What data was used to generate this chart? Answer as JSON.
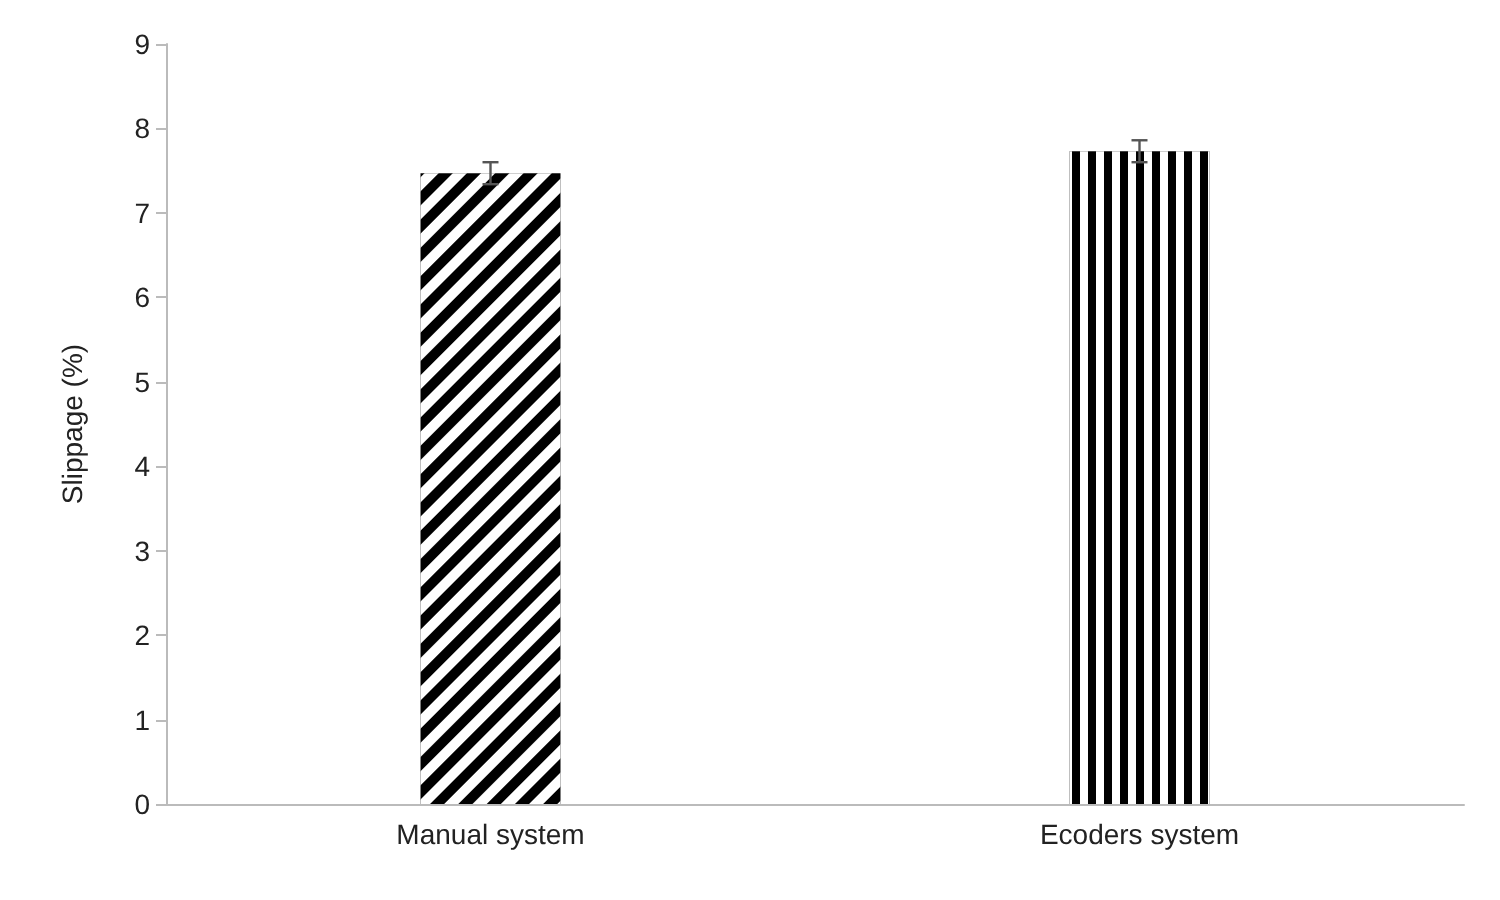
{
  "chart_data": {
    "type": "bar",
    "ylabel": "Slippage (%)",
    "categories": [
      "Manual system",
      "Ecoders system"
    ],
    "values": [
      7.47,
      7.73
    ],
    "errors": [
      0.13,
      0.13
    ],
    "color": "#000000",
    "ylim": [
      0,
      9
    ],
    "yticks": [
      0,
      1,
      2,
      3,
      4,
      5,
      6,
      7,
      8,
      9
    ],
    "grid": false
  }
}
